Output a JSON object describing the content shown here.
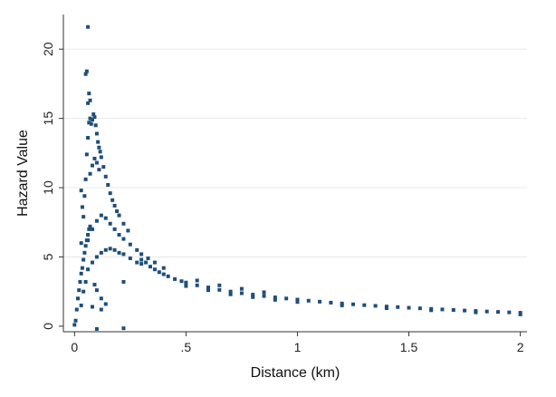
{
  "chart_data": {
    "type": "scatter",
    "xlabel": "Distance (km)",
    "ylabel": "Hazard Value",
    "xlim": [
      -0.05,
      2.03
    ],
    "ylim": [
      -0.4,
      22.5
    ],
    "x_ticks": [
      {
        "value": 0,
        "label": "0"
      },
      {
        "value": 0.5,
        "label": ".5"
      },
      {
        "value": 1,
        "label": "1"
      },
      {
        "value": 1.5,
        "label": "1.5"
      },
      {
        "value": 2,
        "label": "2"
      }
    ],
    "y_ticks": [
      {
        "value": 0,
        "label": "0"
      },
      {
        "value": 5,
        "label": "5"
      },
      {
        "value": 10,
        "label": "10"
      },
      {
        "value": 15,
        "label": "15"
      },
      {
        "value": 20,
        "label": "20"
      }
    ],
    "grid": "horizontal",
    "marker_color": "#1f4e79",
    "series": [
      {
        "points": [
          [
            0.0,
            0.1
          ],
          [
            0.005,
            0.4
          ],
          [
            0.01,
            1.2
          ],
          [
            0.015,
            2.0
          ],
          [
            0.02,
            2.6
          ],
          [
            0.025,
            3.2
          ],
          [
            0.03,
            3.8
          ],
          [
            0.035,
            4.2
          ],
          [
            0.04,
            4.8
          ],
          [
            0.045,
            5.3
          ],
          [
            0.05,
            5.8
          ],
          [
            0.055,
            6.2
          ],
          [
            0.06,
            6.6
          ],
          [
            0.065,
            7.0
          ],
          [
            0.07,
            7.2
          ],
          [
            0.03,
            1.5
          ],
          [
            0.04,
            2.5
          ],
          [
            0.05,
            3.2
          ],
          [
            0.06,
            4.1
          ],
          [
            0.08,
            4.6
          ],
          [
            0.1,
            5.0
          ],
          [
            0.12,
            5.3
          ],
          [
            0.14,
            5.5
          ],
          [
            0.16,
            5.6
          ],
          [
            0.18,
            5.5
          ],
          [
            0.2,
            5.3
          ],
          [
            0.22,
            5.2
          ],
          [
            0.25,
            4.9
          ],
          [
            0.28,
            4.6
          ],
          [
            0.3,
            4.5
          ],
          [
            0.06,
            6.2
          ],
          [
            0.08,
            7.0
          ],
          [
            0.1,
            7.6
          ],
          [
            0.12,
            8.0
          ],
          [
            0.14,
            7.8
          ],
          [
            0.16,
            7.4
          ],
          [
            0.18,
            7.0
          ],
          [
            0.2,
            6.6
          ],
          [
            0.22,
            6.3
          ],
          [
            0.25,
            5.9
          ],
          [
            0.28,
            5.5
          ],
          [
            0.3,
            5.2
          ],
          [
            0.33,
            4.9
          ],
          [
            0.36,
            4.6
          ],
          [
            0.4,
            4.2
          ],
          [
            0.05,
            10.6
          ],
          [
            0.055,
            12.4
          ],
          [
            0.06,
            13.6
          ],
          [
            0.065,
            14.7
          ],
          [
            0.07,
            15.0
          ],
          [
            0.075,
            14.6
          ],
          [
            0.08,
            14.9
          ],
          [
            0.085,
            15.3
          ],
          [
            0.09,
            15.1
          ],
          [
            0.095,
            14.5
          ],
          [
            0.1,
            13.9
          ],
          [
            0.105,
            13.3
          ],
          [
            0.11,
            12.9
          ],
          [
            0.115,
            12.6
          ],
          [
            0.12,
            12.2
          ],
          [
            0.13,
            11.5
          ],
          [
            0.14,
            10.8
          ],
          [
            0.15,
            10.2
          ],
          [
            0.16,
            9.6
          ],
          [
            0.17,
            9.1
          ],
          [
            0.18,
            8.7
          ],
          [
            0.19,
            8.3
          ],
          [
            0.2,
            8.0
          ],
          [
            0.22,
            7.4
          ],
          [
            0.24,
            6.9
          ],
          [
            0.07,
            11.0
          ],
          [
            0.08,
            11.6
          ],
          [
            0.09,
            12.1
          ],
          [
            0.1,
            11.8
          ],
          [
            0.11,
            11.3
          ],
          [
            0.06,
            16.1
          ],
          [
            0.065,
            16.8
          ],
          [
            0.07,
            16.3
          ],
          [
            0.05,
            18.2
          ],
          [
            0.055,
            18.4
          ],
          [
            0.06,
            21.6
          ],
          [
            0.03,
            6.0
          ],
          [
            0.03,
            9.8
          ],
          [
            0.035,
            8.6
          ],
          [
            0.04,
            7.9
          ],
          [
            0.045,
            9.4
          ],
          [
            0.09,
            3.0
          ],
          [
            0.1,
            2.6
          ],
          [
            0.12,
            2.0
          ],
          [
            0.14,
            1.6
          ],
          [
            0.08,
            1.4
          ],
          [
            0.1,
            -0.2
          ],
          [
            0.22,
            -0.15
          ],
          [
            0.22,
            3.2
          ],
          [
            0.12,
            1.2
          ],
          [
            0.3,
            4.8
          ],
          [
            0.32,
            4.6
          ],
          [
            0.34,
            4.3
          ],
          [
            0.36,
            4.1
          ],
          [
            0.38,
            3.9
          ],
          [
            0.4,
            3.75
          ],
          [
            0.42,
            3.6
          ],
          [
            0.45,
            3.4
          ],
          [
            0.48,
            3.25
          ],
          [
            0.5,
            3.15
          ],
          [
            0.55,
            2.95
          ],
          [
            0.6,
            2.8
          ],
          [
            0.65,
            2.62
          ],
          [
            0.7,
            2.5
          ],
          [
            0.75,
            2.38
          ],
          [
            0.8,
            2.28
          ],
          [
            0.85,
            2.18
          ],
          [
            0.9,
            2.08
          ],
          [
            0.95,
            2.0
          ],
          [
            1.0,
            1.92
          ],
          [
            1.05,
            1.84
          ],
          [
            1.1,
            1.77
          ],
          [
            1.15,
            1.7
          ],
          [
            1.2,
            1.64
          ],
          [
            1.25,
            1.58
          ],
          [
            1.3,
            1.52
          ],
          [
            1.35,
            1.47
          ],
          [
            1.4,
            1.42
          ],
          [
            1.45,
            1.38
          ],
          [
            1.5,
            1.33
          ],
          [
            1.55,
            1.29
          ],
          [
            1.6,
            1.25
          ],
          [
            1.65,
            1.21
          ],
          [
            1.7,
            1.17
          ],
          [
            1.75,
            1.13
          ],
          [
            1.8,
            1.1
          ],
          [
            1.85,
            1.06
          ],
          [
            1.9,
            1.03
          ],
          [
            1.95,
            1.0
          ],
          [
            2.0,
            0.97
          ],
          [
            0.5,
            2.9
          ],
          [
            0.6,
            2.6
          ],
          [
            0.7,
            2.3
          ],
          [
            0.8,
            2.1
          ],
          [
            0.9,
            1.9
          ],
          [
            1.0,
            1.75
          ],
          [
            1.2,
            1.5
          ],
          [
            1.4,
            1.3
          ],
          [
            1.6,
            1.15
          ],
          [
            1.8,
            1.0
          ],
          [
            2.0,
            0.85
          ],
          [
            0.55,
            3.3
          ],
          [
            0.65,
            2.95
          ],
          [
            0.75,
            2.7
          ],
          [
            0.85,
            2.45
          ]
        ]
      }
    ]
  }
}
